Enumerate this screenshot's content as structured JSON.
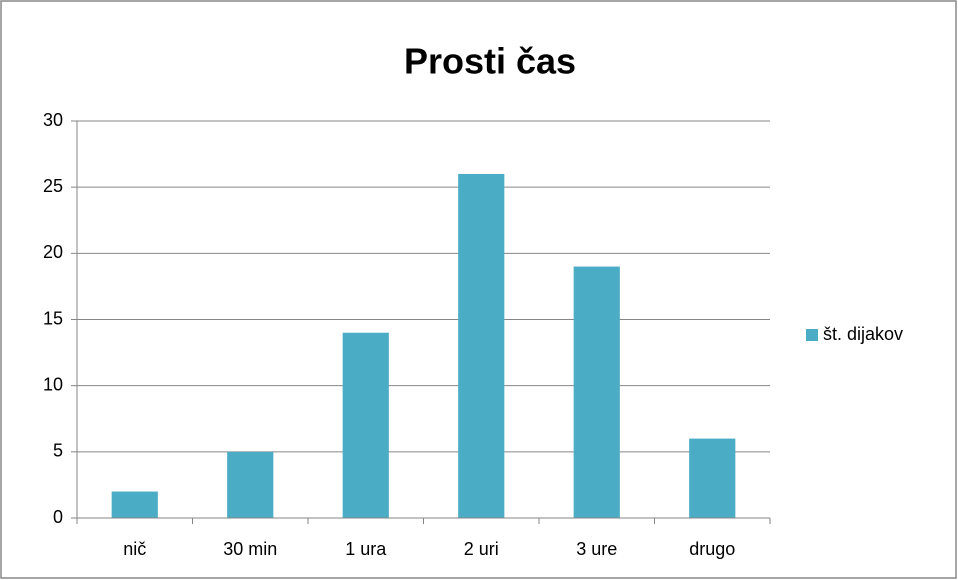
{
  "chart_data": {
    "type": "bar",
    "title": "Prosti čas",
    "categories": [
      "nič",
      "30 min",
      "1 ura",
      "2 uri",
      "3 ure",
      "drugo"
    ],
    "series": [
      {
        "name": "št. dijakov",
        "color": "#4bacc6",
        "values": [
          2,
          5,
          14,
          26,
          19,
          6
        ]
      }
    ],
    "ylim": [
      0,
      30
    ],
    "yticks": [
      0,
      5,
      10,
      15,
      20,
      25,
      30
    ],
    "grid": true,
    "legend": "right"
  }
}
